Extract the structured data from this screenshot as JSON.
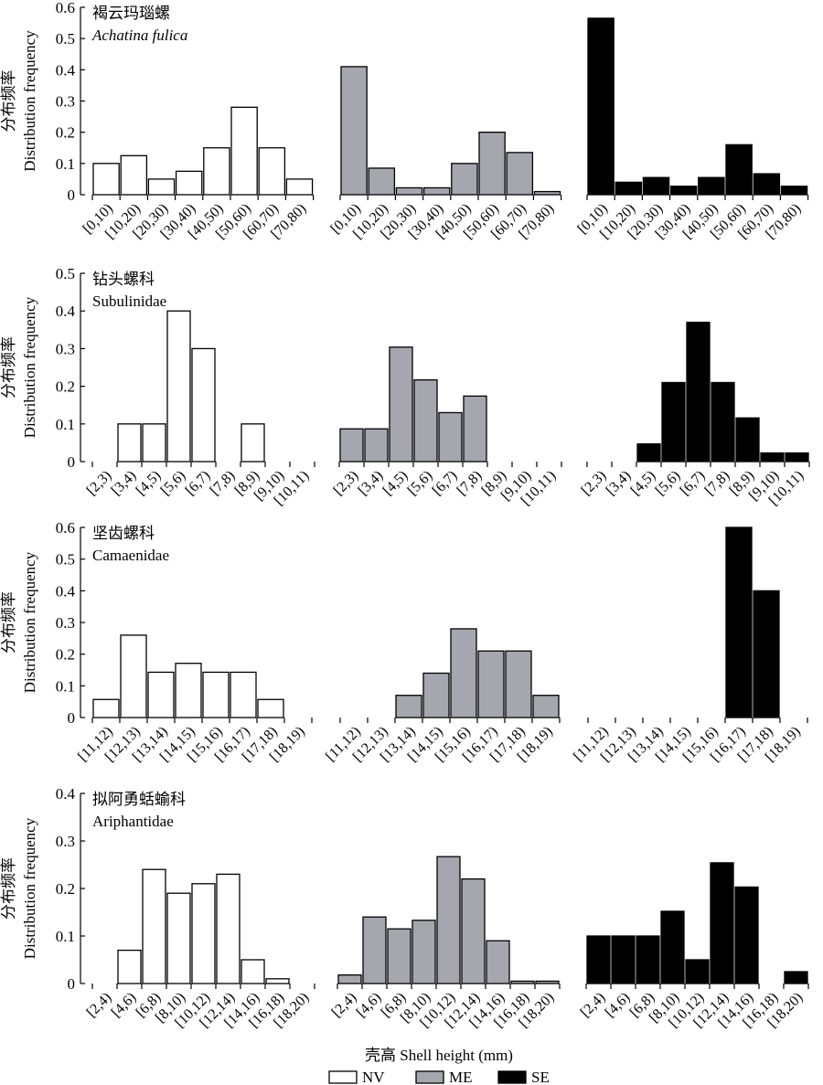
{
  "figure": {
    "ylabel_cn": "分布频率",
    "ylabel_en": "Distribution frequency",
    "xlabel": "壳高 Shell height (mm)",
    "legend": [
      {
        "label": "NV",
        "color": "#ffffff"
      },
      {
        "label": "ME",
        "color": "#a6a6ae"
      },
      {
        "label": "SE",
        "color": "#000000"
      }
    ]
  },
  "chart_data": [
    {
      "type": "bar",
      "title_cn": "褐云玛瑙螺",
      "title_en": "Achatina fulica",
      "title_italic": true,
      "ylim": [
        0,
        0.6
      ],
      "yticks": [
        "0",
        "0.1",
        "0.2",
        "0.3",
        "0.4",
        "0.5",
        "0.6"
      ],
      "categories": [
        "[0,10)",
        "[10,20)",
        "[20,30)",
        "[30,40)",
        "[40,50)",
        "[50,60)",
        "[60,70)",
        "[70,80)"
      ],
      "series": [
        {
          "name": "NV",
          "values": [
            0.1,
            0.125,
            0.05,
            0.075,
            0.15,
            0.28,
            0.15,
            0.05
          ]
        },
        {
          "name": "ME",
          "values": [
            0.41,
            0.085,
            0.022,
            0.022,
            0.1,
            0.2,
            0.135,
            0.01
          ]
        },
        {
          "name": "SE",
          "values": [
            0.565,
            0.04,
            0.055,
            0.027,
            0.055,
            0.16,
            0.067,
            0.027
          ]
        }
      ]
    },
    {
      "type": "bar",
      "title_cn": "钻头螺科",
      "title_en": "Subulinidae",
      "title_italic": false,
      "ylim": [
        0,
        0.5
      ],
      "yticks": [
        "0",
        "0.1",
        "0.2",
        "0.3",
        "0.4",
        "0.5"
      ],
      "categories": [
        "[2,3)",
        "[3,4)",
        "[4,5)",
        "[5,6)",
        "[6,7)",
        "[7,8)",
        "[8,9)",
        "[9,10)",
        "[10,11)"
      ],
      "series": [
        {
          "name": "NV",
          "values": [
            0,
            0.1,
            0.1,
            0.4,
            0.3,
            0,
            0.1,
            0,
            0
          ]
        },
        {
          "name": "ME",
          "values": [
            0.087,
            0.087,
            0.304,
            0.217,
            0.13,
            0.174,
            0,
            0,
            0
          ]
        },
        {
          "name": "SE",
          "values": [
            0,
            0,
            0.047,
            0.21,
            0.37,
            0.21,
            0.116,
            0.023,
            0.023
          ]
        }
      ]
    },
    {
      "type": "bar",
      "title_cn": "坚齿螺科",
      "title_en": "Camaenidae",
      "title_italic": false,
      "ylim": [
        0,
        0.6
      ],
      "yticks": [
        "0",
        "0.1",
        "0.2",
        "0.3",
        "0.4",
        "0.5",
        "0.6"
      ],
      "categories": [
        "[11,12)",
        "[12,13)",
        "[13,14)",
        "[14,15)",
        "[15,16)",
        "[16,17)",
        "[17,18)",
        "[18,19)"
      ],
      "series": [
        {
          "name": "NV",
          "values": [
            0.057,
            0.26,
            0.143,
            0.171,
            0.143,
            0.143,
            0.057,
            0
          ]
        },
        {
          "name": "ME",
          "values": [
            0,
            0,
            0.07,
            0.14,
            0.28,
            0.21,
            0.21,
            0.07
          ]
        },
        {
          "name": "SE",
          "values": [
            0,
            0,
            0,
            0,
            0,
            0.6,
            0.4,
            0
          ]
        }
      ]
    },
    {
      "type": "bar",
      "title_cn": "拟阿勇蛞蝓科",
      "title_en": "Ariphantidae",
      "title_italic": false,
      "ylim": [
        0,
        0.4
      ],
      "yticks": [
        "0",
        "0.1",
        "0.2",
        "0.3",
        "0.4"
      ],
      "categories": [
        "[2,4)",
        "[4,6)",
        "[6,8)",
        "[8,10)",
        "[10,12)",
        "[12,14)",
        "[14,16)",
        "[16,18)",
        "[18,20)"
      ],
      "series": [
        {
          "name": "NV",
          "values": [
            0,
            0.07,
            0.24,
            0.19,
            0.21,
            0.23,
            0.05,
            0.01,
            0
          ]
        },
        {
          "name": "ME",
          "values": [
            0.018,
            0.14,
            0.115,
            0.133,
            0.267,
            0.22,
            0.09,
            0.005,
            0.005
          ]
        },
        {
          "name": "SE",
          "values": [
            0.1,
            0.1,
            0.1,
            0.152,
            0.05,
            0.254,
            0.203,
            0,
            0.025
          ]
        }
      ]
    }
  ]
}
